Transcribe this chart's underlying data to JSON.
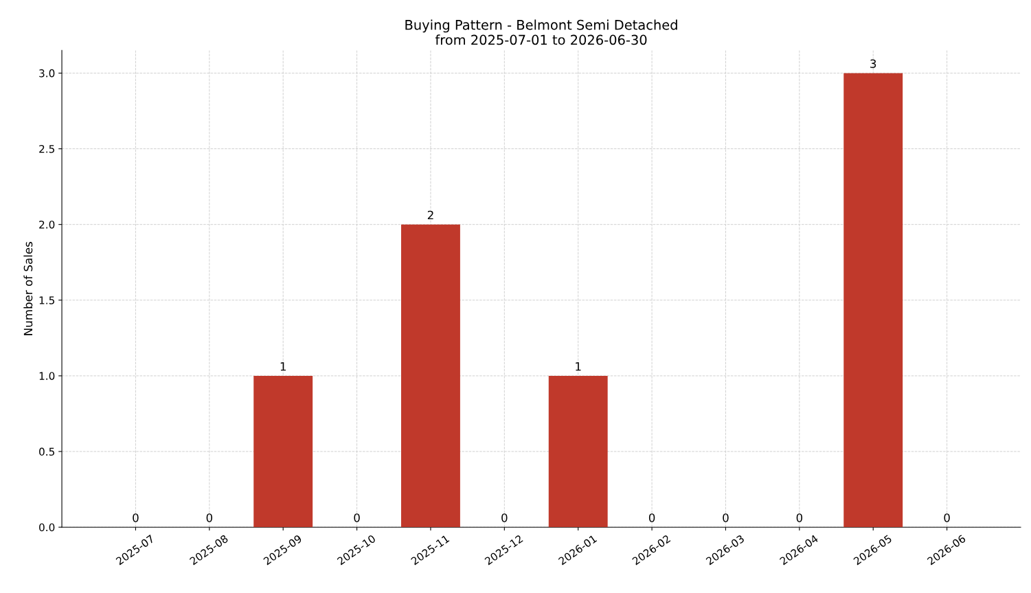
{
  "chart_data": {
    "type": "bar",
    "title": "Buying Pattern - Belmont Semi Detached\nfrom 2025-07-01 to 2026-06-30",
    "ylabel": "Number of Sales",
    "categories": [
      "2025-07",
      "2025-08",
      "2025-09",
      "2025-10",
      "2025-11",
      "2025-12",
      "2026-01",
      "2026-02",
      "2026-03",
      "2026-04",
      "2026-05",
      "2026-06"
    ],
    "values": [
      0,
      0,
      1,
      0,
      2,
      0,
      1,
      0,
      0,
      0,
      3,
      0
    ],
    "color": "#c0392b",
    "ylim": [
      0,
      3.15
    ],
    "yticks": [
      {
        "value": 0,
        "label": "0.0"
      },
      {
        "value": 0.5,
        "label": "0.5"
      },
      {
        "value": 1,
        "label": "1.0"
      },
      {
        "value": 1.5,
        "label": "1.5"
      },
      {
        "value": 2,
        "label": "2.0"
      },
      {
        "value": 2.5,
        "label": "2.5"
      },
      {
        "value": 3,
        "label": "3.0"
      }
    ],
    "grid": true,
    "data_labels": true
  }
}
